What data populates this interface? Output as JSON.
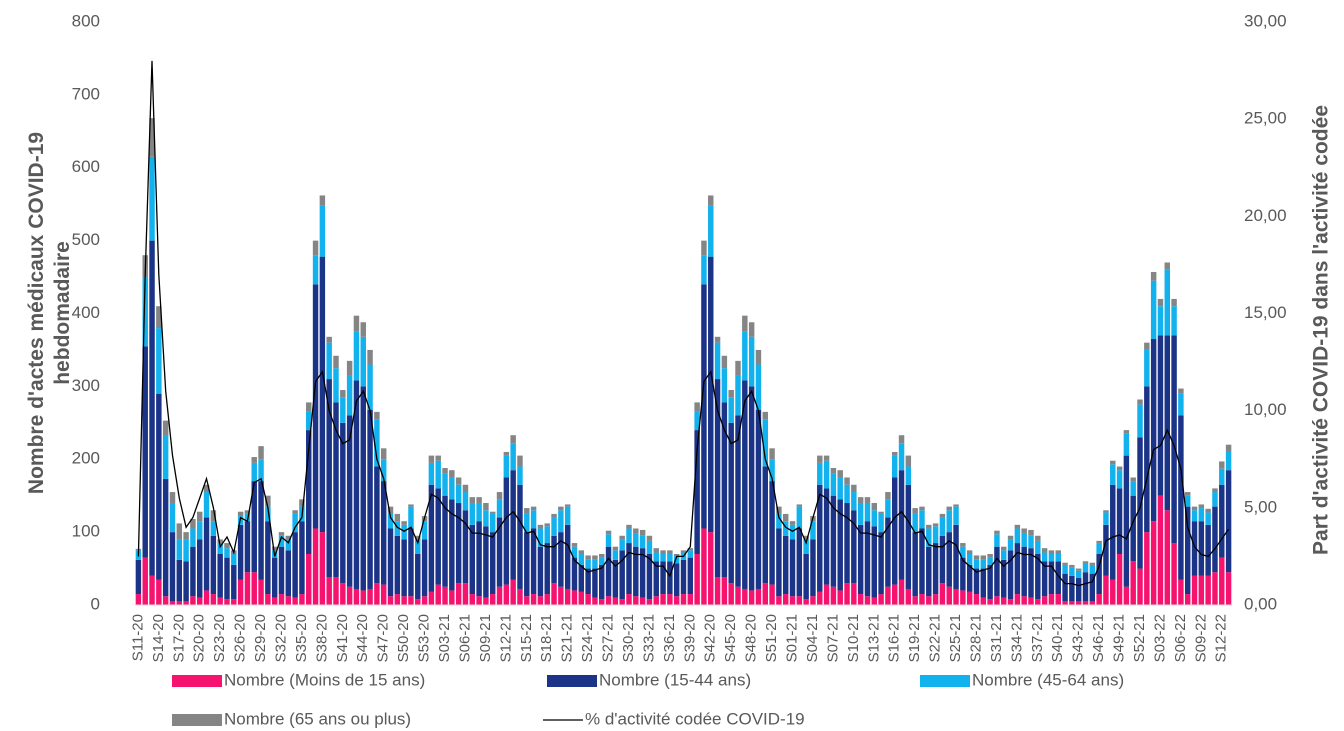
{
  "chart_data": {
    "type": "bar",
    "stacked": true,
    "y_label": "Nombre d'actes médicaux COVID-19 hebdomadaire",
    "y2_label": "Part d'activité COVID-19 dans l'activité codée",
    "ylim": [
      0,
      800
    ],
    "yticks": [
      0,
      100,
      200,
      300,
      400,
      500,
      600,
      700,
      800
    ],
    "y2lim": [
      0,
      30
    ],
    "y2ticks": [
      {
        "value": 0,
        "label": "0,00"
      },
      {
        "value": 5,
        "label": "5,00"
      },
      {
        "value": 10,
        "label": "10,00"
      },
      {
        "value": 15,
        "label": "15,00"
      },
      {
        "value": 20,
        "label": "20,00"
      },
      {
        "value": 25,
        "label": "25,00"
      },
      {
        "value": 30,
        "label": "30,00"
      }
    ],
    "categories": [
      "S11-20",
      null,
      null,
      "S14-20",
      null,
      null,
      "S17-20",
      null,
      null,
      "S20-20",
      null,
      null,
      "S23-20",
      null,
      null,
      "S26-20",
      null,
      null,
      "S29-20",
      null,
      null,
      "S32-20",
      null,
      null,
      "S35-20",
      null,
      null,
      "S38-20",
      null,
      null,
      "S41-20",
      null,
      null,
      "S44-20",
      null,
      null,
      "S47-20",
      null,
      null,
      "S50-20",
      null,
      null,
      "S53-20",
      null,
      null,
      "S03-21",
      null,
      null,
      "S06-21",
      null,
      null,
      "S09-21",
      null,
      null,
      "S12-21",
      null,
      null,
      "S15-21",
      null,
      null,
      "S18-21",
      null,
      null,
      "S21-21",
      null,
      null,
      "S24-21",
      null,
      null,
      "S27-21",
      null,
      null,
      "S30-21",
      null,
      null,
      "S33-21",
      null,
      null,
      "S36-21",
      null,
      null,
      "S39-20",
      null,
      null,
      "S42-20",
      null,
      null,
      "S45-20",
      null,
      null,
      "S48-20",
      null,
      null,
      "S51-20",
      null,
      null,
      "S01-21",
      null,
      null,
      "S04-21",
      null,
      null,
      "S07-21",
      null,
      null,
      "S10-21",
      null,
      null,
      "S13-21",
      null,
      null,
      "S16-21",
      null,
      null,
      "S19-21",
      null,
      null,
      "S22-21",
      null,
      null,
      "S25-21",
      null,
      null,
      "S28-21",
      null,
      null,
      "S31-21",
      null,
      null,
      "S34-21",
      null,
      null,
      "S37-21",
      null,
      null,
      "S40-21",
      null,
      null,
      "S43-21",
      null,
      null,
      "S46-21",
      null,
      null,
      "S49-21",
      null,
      null,
      "S52-21",
      null,
      null,
      "S03-22",
      null,
      null,
      "S06-22",
      null,
      null,
      "S09-22",
      null,
      null,
      "S12-22",
      null
    ],
    "series": [
      {
        "name": "Nombre (Moins de 15 ans)",
        "color": "#f5136f",
        "values": [
          15,
          65,
          40,
          35,
          12,
          5,
          5,
          5,
          12,
          10,
          20,
          15,
          10,
          8,
          8,
          35,
          45,
          45,
          35,
          15,
          10,
          15,
          12,
          10,
          15,
          70,
          105,
          100,
          38,
          38,
          30,
          25,
          22,
          20,
          22,
          30,
          28,
          12,
          15,
          12,
          12,
          8,
          12,
          18,
          28,
          25,
          20,
          30,
          30,
          15,
          12,
          10,
          15,
          25,
          28,
          35,
          22,
          12,
          15,
          12,
          15,
          30,
          25,
          22,
          20,
          18,
          15,
          10,
          8,
          12,
          10,
          8,
          15,
          12,
          10,
          8,
          12,
          15,
          15,
          12,
          15,
          15,
          70,
          105,
          100,
          38,
          38,
          30,
          25,
          22,
          20,
          22,
          30,
          28,
          12,
          15,
          12,
          12,
          8,
          12,
          18,
          28,
          25,
          20,
          30,
          30,
          15,
          12,
          10,
          15,
          25,
          28,
          35,
          22,
          12,
          15,
          12,
          15,
          30,
          25,
          22,
          20,
          18,
          15,
          10,
          8,
          12,
          10,
          8,
          15,
          12,
          10,
          8,
          12,
          15,
          15,
          5,
          5,
          5,
          5,
          5,
          15,
          40,
          35,
          70,
          25,
          60,
          50,
          100,
          115,
          150,
          130,
          85,
          35,
          15,
          40,
          40,
          40,
          45,
          65,
          45
        ]
      },
      {
        "name": "Nombre (15-44 ans)",
        "color": "#1b3487",
        "values": [
          47,
          290,
          460,
          255,
          161,
          95,
          57,
          55,
          68,
          80,
          100,
          80,
          60,
          57,
          47,
          75,
          70,
          125,
          135,
          100,
          55,
          65,
          63,
          90,
          100,
          170,
          335,
          378,
          272,
          240,
          220,
          235,
          286,
          280,
          246,
          160,
          142,
          93,
          80,
          78,
          93,
          62,
          78,
          147,
          132,
          125,
          125,
          110,
          100,
          95,
          103,
          98,
          85,
          95,
          147,
          150,
          143,
          88,
          90,
          68,
          70,
          65,
          75,
          88,
          45,
          37,
          35,
          40,
          47,
          68,
          52,
          67,
          70,
          68,
          68,
          62,
          48,
          45,
          45,
          45,
          47,
          50,
          170,
          335,
          378,
          272,
          240,
          220,
          235,
          286,
          280,
          246,
          160,
          142,
          93,
          80,
          78,
          93,
          62,
          78,
          147,
          132,
          125,
          125,
          110,
          100,
          95,
          103,
          98,
          85,
          95,
          147,
          150,
          143,
          88,
          90,
          68,
          70,
          65,
          75,
          88,
          45,
          37,
          35,
          40,
          47,
          68,
          52,
          67,
          70,
          68,
          68,
          62,
          48,
          45,
          45,
          38,
          35,
          32,
          40,
          38,
          55,
          70,
          130,
          90,
          180,
          90,
          180,
          200,
          250,
          220,
          240,
          285,
          225,
          120,
          75,
          75,
          70,
          90,
          100,
          140
        ]
      },
      {
        "name": "Nombre (45-64 ans)",
        "color": "#12b2ee",
        "values": [
          13,
          95,
          115,
          90,
          59,
          40,
          28,
          30,
          25,
          25,
          35,
          20,
          15,
          13,
          15,
          12,
          10,
          25,
          30,
          20,
          10,
          15,
          15,
          25,
          20,
          25,
          40,
          70,
          50,
          47,
          35,
          55,
          67,
          68,
          62,
          65,
          30,
          20,
          20,
          20,
          30,
          20,
          25,
          30,
          38,
          30,
          30,
          25,
          25,
          30,
          25,
          22,
          25,
          25,
          30,
          37,
          25,
          25,
          25,
          25,
          23,
          25,
          30,
          25,
          15,
          15,
          12,
          12,
          10,
          17,
          13,
          15,
          20,
          18,
          17,
          18,
          12,
          10,
          10,
          10,
          10,
          10,
          25,
          40,
          70,
          50,
          47,
          35,
          55,
          67,
          68,
          62,
          65,
          30,
          20,
          20,
          20,
          30,
          20,
          25,
          30,
          38,
          30,
          30,
          25,
          25,
          30,
          25,
          22,
          25,
          25,
          30,
          37,
          25,
          25,
          25,
          25,
          23,
          25,
          30,
          25,
          15,
          15,
          12,
          12,
          10,
          17,
          13,
          15,
          20,
          18,
          17,
          18,
          12,
          10,
          10,
          12,
          12,
          10,
          12,
          12,
          15,
          17,
          28,
          25,
          30,
          20,
          45,
          50,
          80,
          40,
          90,
          40,
          30,
          15,
          15,
          18,
          17,
          20,
          22,
          25
        ]
      },
      {
        "name": "Nombre (65 ans ou plus)",
        "color": "#858585",
        "values": [
          2,
          30,
          53,
          30,
          21,
          15,
          22,
          10,
          13,
          13,
          10,
          15,
          5,
          7,
          5,
          6,
          5,
          8,
          18,
          15,
          5,
          5,
          5,
          5,
          10,
          13,
          20,
          14,
          8,
          17,
          10,
          20,
          22,
          20,
          20,
          10,
          15,
          10,
          10,
          5,
          3,
          5,
          7,
          10,
          7,
          8,
          10,
          10,
          10,
          8,
          8,
          10,
          3,
          10,
          5,
          11,
          15,
          8,
          5,
          5,
          4,
          5,
          5,
          3,
          5,
          5,
          6,
          6,
          5,
          5,
          5,
          5,
          5,
          7,
          8,
          7,
          6,
          5,
          5,
          3,
          3,
          3,
          13,
          20,
          14,
          8,
          17,
          10,
          20,
          22,
          20,
          20,
          10,
          15,
          10,
          10,
          5,
          3,
          5,
          7,
          10,
          7,
          8,
          10,
          10,
          10,
          8,
          8,
          10,
          3,
          10,
          5,
          11,
          15,
          8,
          5,
          5,
          4,
          5,
          5,
          3,
          5,
          5,
          6,
          6,
          5,
          5,
          5,
          5,
          5,
          7,
          8,
          7,
          6,
          5,
          5,
          3,
          3,
          3,
          3,
          3,
          3,
          3,
          5,
          5,
          5,
          5,
          7,
          10,
          12,
          10,
          10,
          10,
          7,
          5,
          5,
          5,
          5,
          5,
          10,
          10
        ]
      },
      {
        "name": "% d'activité codée COVID-19",
        "color": "#000000",
        "type": "line",
        "axis": "y2",
        "values": [
          2.5,
          17,
          28,
          17,
          11,
          7.7,
          5.5,
          4,
          4.5,
          5.5,
          6.5,
          5,
          3,
          3.5,
          2.7,
          4.5,
          4.3,
          6.3,
          6.5,
          5,
          2.5,
          3.5,
          3.2,
          4,
          4.5,
          8,
          11.5,
          12,
          10,
          9,
          8.3,
          8.5,
          10.5,
          11,
          10,
          7.5,
          6.5,
          4.5,
          4,
          3.8,
          4,
          3.2,
          4.5,
          5.7,
          5.5,
          5,
          4.7,
          4.5,
          4.2,
          3.7,
          3.7,
          3.6,
          3.5,
          4,
          4.5,
          4.8,
          4.3,
          3.7,
          3.8,
          3.1,
          3,
          3,
          3.3,
          3.1,
          2.3,
          2,
          1.7,
          1.8,
          1.9,
          2.4,
          2,
          2.3,
          2.7,
          2.6,
          2.6,
          2.4,
          2,
          2,
          1.5,
          2.5,
          2.5,
          3,
          8,
          11.5,
          12,
          10,
          9,
          8.3,
          8.5,
          10.5,
          11,
          10,
          7.5,
          6.5,
          4.5,
          4,
          3.8,
          4,
          3.2,
          4.5,
          5.7,
          5.5,
          5,
          4.7,
          4.5,
          4.2,
          3.7,
          3.7,
          3.6,
          3.5,
          4,
          4.5,
          4.8,
          4.3,
          3.7,
          3.8,
          3.1,
          3,
          3,
          3.3,
          3.1,
          2.3,
          2,
          1.7,
          1.8,
          1.9,
          2.4,
          2,
          2.3,
          2.7,
          2.6,
          2.6,
          2.4,
          2,
          2,
          1.5,
          1.1,
          1.1,
          1,
          1.1,
          1.2,
          2,
          3.3,
          3.5,
          3.6,
          3.4,
          4.3,
          5,
          6.5,
          8,
          8.2,
          9,
          8.2,
          7,
          4,
          3,
          2.6,
          2.5,
          2.9,
          3.4,
          3.9
        ]
      }
    ]
  }
}
